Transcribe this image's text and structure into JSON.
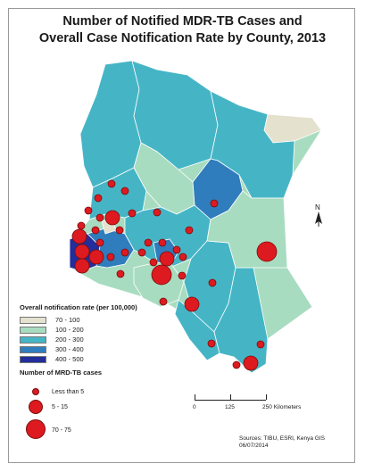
{
  "title": {
    "line1": "Number of Notified MDR-TB Cases and",
    "line2": "Overall Case Notification Rate by County, 2013"
  },
  "colors": {
    "rate_70_100": "#e4e2cf",
    "rate_100_200": "#a8dcc0",
    "rate_200_300": "#45b5c6",
    "rate_300_400": "#2f7dbd",
    "rate_400_500": "#232e9a",
    "cases_marker": "#dd1a1f"
  },
  "legend_rate": {
    "heading": "Overall notification rate (per 100,000)",
    "items": [
      {
        "label": "70 - 100",
        "color": "#e4e2cf"
      },
      {
        "label": "100 - 200",
        "color": "#a8dcc0"
      },
      {
        "label": "200 - 300",
        "color": "#45b5c6"
      },
      {
        "label": "300 - 400",
        "color": "#2f7dbd"
      },
      {
        "label": "400 - 500",
        "color": "#232e9a"
      }
    ]
  },
  "legend_cases": {
    "heading": "Number of MRD-TB cases",
    "items": [
      {
        "label": "Less than 5"
      },
      {
        "label": "5 - 15"
      },
      {
        "label": "70 - 75"
      }
    ]
  },
  "scale_bar": {
    "labels": [
      "0",
      "125",
      "250 Kilometers"
    ]
  },
  "north_arrow": {
    "label": "N"
  },
  "sources": {
    "line1": "Sources: TIBU, ESRI, Kenya GIS",
    "line2": "06/07/2014"
  }
}
